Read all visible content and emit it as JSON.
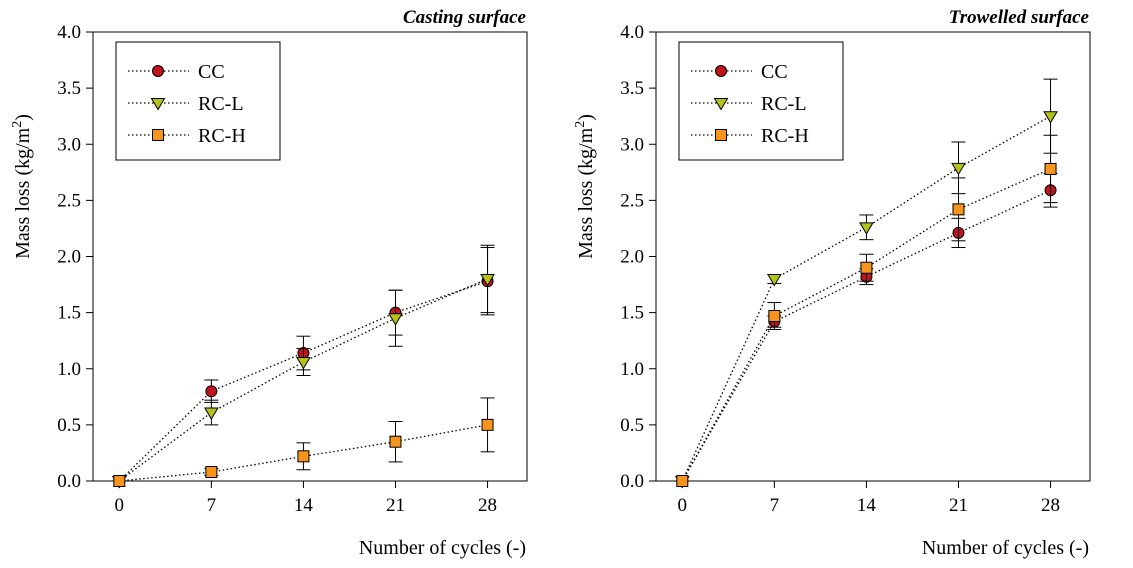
{
  "chart_data": [
    {
      "type": "line",
      "title": "Casting surface",
      "xlabel": "Number of cycles (-)",
      "ylabel": "Mass loss (kg/m",
      "ylabel_sup": "2",
      "ylabel_end": ")",
      "xlim": [
        -2,
        31
      ],
      "ylim": [
        0,
        4
      ],
      "x_ticks": [
        "0",
        "7",
        "14",
        "21",
        "28"
      ],
      "y_ticks": [
        "0.0",
        "0.5",
        "1.0",
        "1.5",
        "2.0",
        "2.5",
        "3.0",
        "3.5",
        "4.0"
      ],
      "x": [
        0,
        7,
        14,
        21,
        28
      ],
      "legend_position": "top-left",
      "series": [
        {
          "name": "CC",
          "marker": "circle",
          "color": "#c0141c",
          "values": [
            0,
            0.8,
            1.14,
            1.5,
            1.78
          ],
          "errors": [
            0,
            0.1,
            0.15,
            0.2,
            0.3
          ]
        },
        {
          "name": "RC-L",
          "marker": "triangle-down",
          "color": "#b5c21a",
          "values": [
            0,
            0.61,
            1.06,
            1.45,
            1.8
          ],
          "errors": [
            0,
            0.11,
            0.12,
            0.25,
            0.3
          ]
        },
        {
          "name": "RC-H",
          "marker": "square",
          "color": "#f7941d",
          "values": [
            0,
            0.08,
            0.22,
            0.35,
            0.5
          ],
          "errors": [
            0,
            0.03,
            0.12,
            0.18,
            0.24
          ]
        }
      ]
    },
    {
      "type": "line",
      "title": "Trowelled surface",
      "xlabel": "Number of cycles (-)",
      "ylabel": "Mass loss (kg/m",
      "ylabel_sup": "2",
      "ylabel_end": ")",
      "xlim": [
        -2,
        31
      ],
      "ylim": [
        0,
        4
      ],
      "x_ticks": [
        "0",
        "7",
        "14",
        "21",
        "28"
      ],
      "y_ticks": [
        "0.0",
        "0.5",
        "1.0",
        "1.5",
        "2.0",
        "2.5",
        "3.0",
        "3.5",
        "4.0"
      ],
      "x": [
        0,
        7,
        14,
        21,
        28
      ],
      "legend_position": "top-left",
      "series": [
        {
          "name": "CC",
          "marker": "circle",
          "color": "#c0141c",
          "values": [
            0,
            1.42,
            1.82,
            2.21,
            2.59
          ],
          "errors": [
            0,
            0.05,
            0.07,
            0.13,
            0.15
          ]
        },
        {
          "name": "RC-L",
          "marker": "triangle-down",
          "color": "#b5c21a",
          "values": [
            0,
            1.8,
            2.26,
            2.79,
            3.25
          ],
          "errors": [
            0,
            0.04,
            0.11,
            0.23,
            0.33
          ]
        },
        {
          "name": "RC-H",
          "marker": "square",
          "color": "#f7941d",
          "values": [
            0,
            1.47,
            1.9,
            2.42,
            2.78
          ],
          "errors": [
            0,
            0.12,
            0.12,
            0.28,
            0.3
          ]
        }
      ]
    }
  ]
}
